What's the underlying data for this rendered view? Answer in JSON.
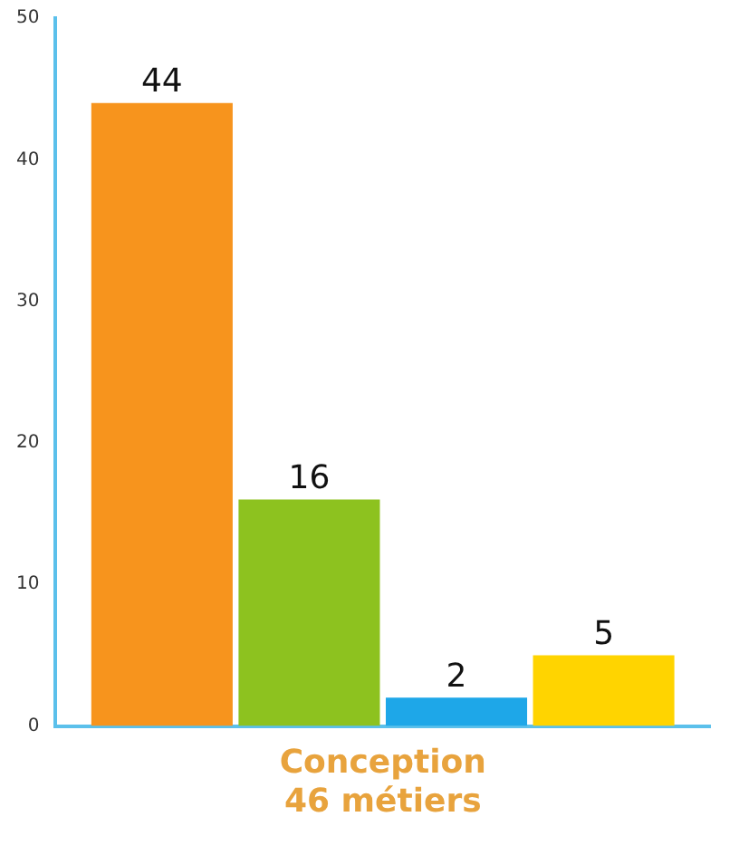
{
  "chart_data": {
    "type": "bar",
    "categories": [
      "Conception\n46 métiers"
    ],
    "series": [
      {
        "color": "#f7941d",
        "values": [
          44
        ]
      },
      {
        "color": "#8dc21f",
        "values": [
          16
        ]
      },
      {
        "color": "#1ea7e8",
        "values": [
          2
        ]
      },
      {
        "color": "#ffd400",
        "values": [
          5
        ]
      }
    ],
    "ylim": [
      0,
      50
    ],
    "yticks": [
      0,
      10,
      20,
      30,
      40,
      50
    ],
    "grid": false,
    "legend": false,
    "data_labels": true
  }
}
